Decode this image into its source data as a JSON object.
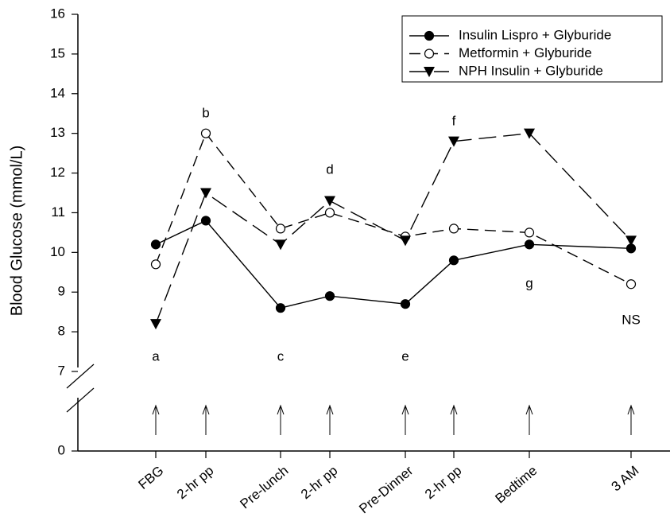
{
  "chart_data": {
    "type": "line",
    "y_label": "Blood Glucose (mmol/L)",
    "categories": [
      "FBG",
      "2-hr pp",
      "Pre-lunch",
      "2-hr pp",
      "Pre-Dinner",
      "2-hr pp",
      "Bedtime",
      "3 AM"
    ],
    "annotations": [
      "a",
      "b",
      "c",
      "d",
      "e",
      "f",
      "g",
      "NS"
    ],
    "series": [
      {
        "name": "Insulin Lispro + Glyburide",
        "color": "#000000",
        "marker": "filled-circle",
        "dash": "solid",
        "values": [
          10.2,
          10.8,
          8.6,
          8.9,
          8.7,
          9.8,
          10.2,
          10.1
        ]
      },
      {
        "name": "Metformin + Glyburide",
        "color": "#000000",
        "marker": "open-circle",
        "dash": "dashed",
        "values": [
          9.7,
          13.0,
          10.6,
          11.0,
          10.4,
          10.6,
          10.5,
          9.2
        ]
      },
      {
        "name": "NPH Insulin + Glyburide",
        "color": "#000000",
        "marker": "triangle-down",
        "dash": "long-dashed",
        "values": [
          8.2,
          11.5,
          10.2,
          11.3,
          10.3,
          12.8,
          13.0,
          10.3
        ]
      }
    ],
    "ylim": [
      0,
      16
    ],
    "y_break": [
      0,
      7
    ],
    "yticks": [
      0,
      7,
      8,
      9,
      10,
      11,
      12,
      13,
      14,
      15,
      16
    ],
    "legend": "upper-right"
  }
}
